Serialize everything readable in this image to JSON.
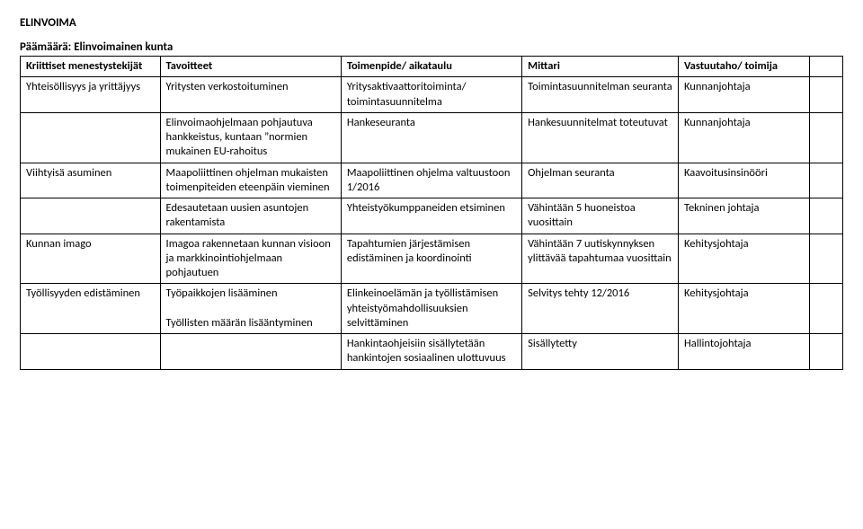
{
  "heading": "ELINVOIMA",
  "goal": "Päämäärä: Elinvoimainen kunta",
  "headers": {
    "c1": "Kriittiset menestystekijät",
    "c2": "Tavoitteet",
    "c3": "Toimenpide/ aikataulu",
    "c4": "Mittari",
    "c5": "Vastuutaho/ toimija"
  },
  "rows": [
    {
      "c1": "Yhteisöllisyys ja yrittäjyys",
      "c2": "Yritysten verkostoituminen",
      "c3": "Yritysaktivaattoritoiminta/ toimintasuunnitelma",
      "c4": "Toimintasuunnitelman seuranta",
      "c5": "Kunnanjohtaja"
    },
    {
      "c1": "",
      "c2": "Elinvoimaohjelmaan pohjautuva hankkeistus, kuntaan ”normien mukainen EU-rahoitus",
      "c3": "Hankeseuranta",
      "c4": "Hankesuunnitelmat toteutuvat",
      "c5": "Kunnanjohtaja"
    },
    {
      "c1": "Viihtyisä asuminen",
      "c2": "Maapoliittinen ohjelman mukaisten toimenpiteiden eteenpäin vieminen",
      "c3": "Maapoliittinen ohjelma valtuustoon 1/2016",
      "c4": "Ohjelman seuranta",
      "c5": "Kaavoitusinsinööri"
    },
    {
      "c1": "",
      "c2": "Edesautetaan uusien asuntojen rakentamista",
      "c3": "Yhteistyökumppaneiden etsiminen",
      "c4": "Vähintään 5 huoneistoa vuosittain",
      "c5": "Tekninen johtaja"
    },
    {
      "c1": "Kunnan imago",
      "c2": "Imagoa rakennetaan kunnan visioon ja markkinointiohjelmaan pohjautuen",
      "c3": "Tapahtumien järjestämisen edistäminen ja koordinointi",
      "c4": "Vähintään 7 uutiskynnyksen ylittävää tapahtumaa vuosittain",
      "c5": "Kehitysjohtaja"
    },
    {
      "c1": "Työllisyyden edistäminen",
      "c2": "Työpaikkojen lisääminen\n\nTyöllisten määrän lisääntyminen",
      "c3": "Elinkeinoelämän ja työllistämisen yhteistyömahdollisuuksien selvittäminen",
      "c4": "Selvitys tehty 12/2016",
      "c5": "Kehitysjohtaja"
    },
    {
      "c1": "",
      "c2": "",
      "c3": "Hankintaohjeisiin sisällytetään hankintojen sosiaalinen ulottuvuus",
      "c4": "Sisällytetty",
      "c5": "Hallintojohtaja"
    }
  ]
}
